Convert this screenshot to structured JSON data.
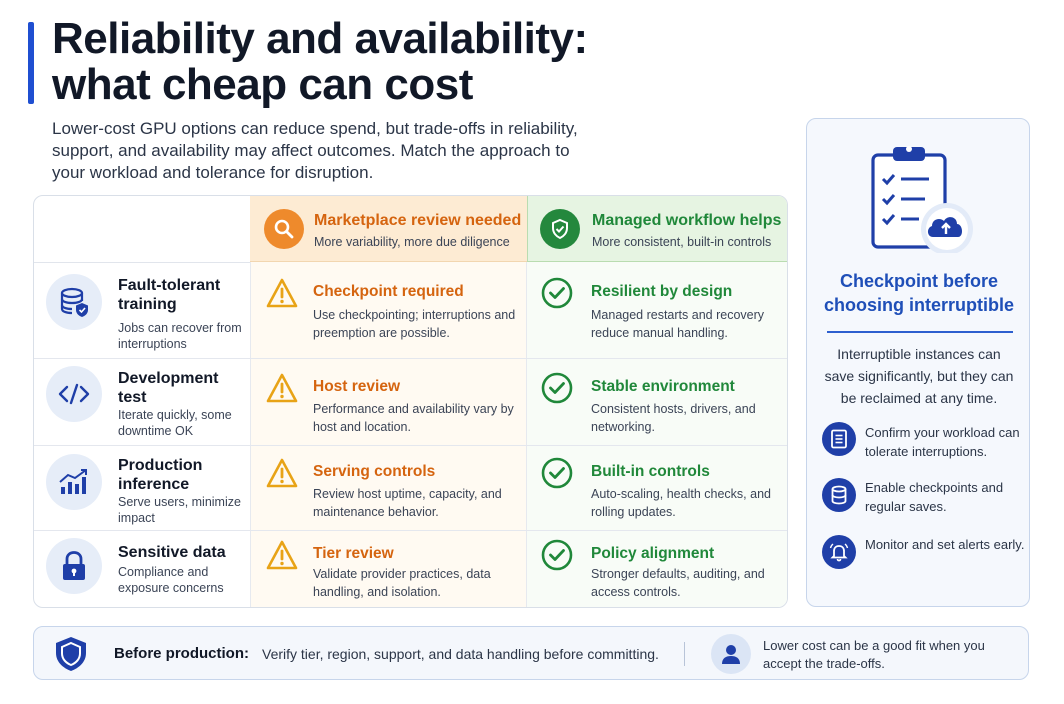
{
  "header": {
    "title_line1": "Reliability and availability:",
    "title_line2": "what cheap can cost",
    "intro": "Lower-cost GPU options can reduce spend, but trade-offs in reliability, support, and availability may affect outcomes. Match the approach to your workload and tolerance for disruption."
  },
  "columns": {
    "marketplace": {
      "title": "Marketplace review needed",
      "subtitle": "More variability, more due diligence",
      "icon": "search-icon",
      "color": "#d5640f"
    },
    "managed": {
      "title": "Managed workflow helps",
      "subtitle": "More consistent, built-in controls",
      "icon": "shield-check-icon",
      "color": "#20883a"
    }
  },
  "rows": [
    {
      "title": "Fault-tolerant training",
      "desc": "Jobs can recover from interruptions",
      "icon": "database-shield-icon",
      "market_title": "Checkpoint required",
      "market_desc": "Use checkpointing; interruptions and preemption are possible.",
      "managed_title": "Resilient by design",
      "managed_desc": "Managed restarts and recovery reduce manual handling."
    },
    {
      "title": "Development test",
      "desc": "Iterate quickly, some downtime OK",
      "icon": "code-icon",
      "market_title": "Host review",
      "market_desc": "Performance and availability vary by host and location.",
      "managed_title": "Stable environment",
      "managed_desc": "Consistent hosts, drivers, and networking."
    },
    {
      "title": "Production inference",
      "desc": "Serve users, minimize impact",
      "icon": "chart-growth-icon",
      "market_title": "Serving controls",
      "market_desc": "Review host uptime, capacity, and maintenance behavior.",
      "managed_title": "Built-in controls",
      "managed_desc": "Auto-scaling, health checks, and rolling updates."
    },
    {
      "title": "Sensitive data",
      "desc": "Compliance and exposure concerns",
      "icon": "lock-icon",
      "market_title": "Tier review",
      "market_desc": "Validate provider practices, data handling, and isolation.",
      "managed_title": "Policy alignment",
      "managed_desc": "Stronger defaults, auditing, and access controls."
    }
  ],
  "panel": {
    "title": "Checkpoint before choosing interruptible",
    "body": "Interruptible instances can save significantly, but they can be reclaimed at any time.",
    "items": [
      {
        "text": "Confirm your workload can tolerate interruptions.",
        "icon": "list-icon"
      },
      {
        "text": "Enable checkpoints and regular saves.",
        "icon": "database-icon"
      },
      {
        "text": "Monitor and set alerts early.",
        "icon": "alert-bell-icon"
      }
    ]
  },
  "footer": {
    "label": "Before production:",
    "text": "Verify tier, region, support, and data handling before committing.",
    "note": "Lower cost can be a good fit when you accept the trade-offs."
  },
  "colors": {
    "accent": "#1f4fd1",
    "warning": "#e8a317",
    "success": "#20883a",
    "panel_blue": "#1f4fb8"
  }
}
